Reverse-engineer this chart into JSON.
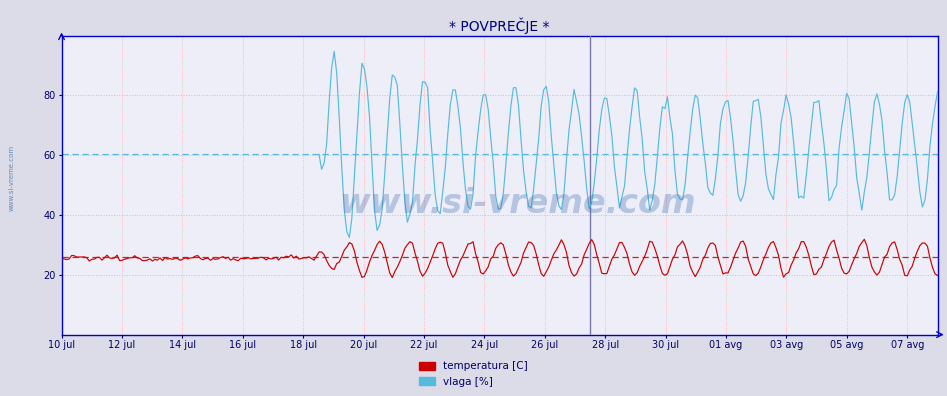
{
  "title": "* POVPREČJE *",
  "title_color": "#000080",
  "title_fontsize": 10,
  "ylim": [
    0,
    100
  ],
  "yticks": [
    20,
    40,
    60,
    80
  ],
  "fig_bg_color": "#dcdce8",
  "plot_bg_color": "#eeeef8",
  "grid_color_red": "#ffaaaa",
  "avg_line_red_y": 26.0,
  "avg_line_blue_y": 60.5,
  "legend_temp_color": "#cc0000",
  "legend_vlaga_color": "#55bbdd",
  "temp_line_color": "#cc0000",
  "vlaga_line_color": "#55bbdd",
  "watermark_text": "www.si-vreme.com",
  "watermark_color": "#3366aa",
  "watermark_alpha": 0.3,
  "watermark_fontsize": 24,
  "axis_color": "#0000cc",
  "tick_color": "#000066",
  "tick_fontsize": 7,
  "side_text": "www.si-vreme.com",
  "side_text_color": "#336699",
  "xticklabels": [
    "10 jul",
    "12 jul",
    "14 jul",
    "16 jul",
    "18 jul",
    "20 jul",
    "22 jul",
    "24 jul",
    "26 jul",
    "28 jul",
    "30 jul",
    "01 avg",
    "03 avg",
    "05 avg",
    "07 avg"
  ],
  "xtick_positions": [
    0,
    2,
    4,
    6,
    8,
    10,
    12,
    14,
    16,
    18,
    20,
    22,
    24,
    26,
    28
  ],
  "n_days": 29,
  "vertical_line_x": 17.5,
  "vertical_line_color": "#7777aa",
  "temp_base": 25.5,
  "temp_amplitude_flat": 0.4,
  "temp_amplitude_osc": 5.5,
  "temp_start_osc_day": 8.0,
  "vlaga_start_day": 8.5,
  "vlaga_base": 62.0,
  "vlaga_amplitude": 20.0
}
